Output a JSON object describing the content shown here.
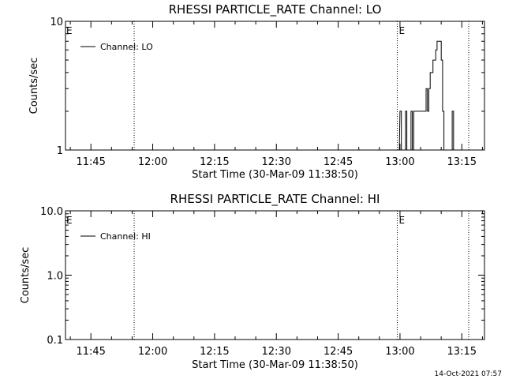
{
  "footer": {
    "timestamp": "14-Oct-2021 07:57"
  },
  "chart_data": [
    {
      "type": "line",
      "title": "RHESSI PARTICLE_RATE Channel: LO",
      "xlabel": "Start Time (30-Mar-09 11:38:50)",
      "ylabel": "Counts/sec",
      "yscale": "log",
      "ylim": [
        1,
        10
      ],
      "ytick_labels": [
        "1",
        "10"
      ],
      "xlim": [
        "11:38:50",
        "13:20:30"
      ],
      "xtick_labels": [
        "11:45",
        "12:00",
        "12:15",
        "12:30",
        "12:45",
        "13:00",
        "13:15"
      ],
      "legend": {
        "position": "top-left",
        "labels": [
          "Channel: LO"
        ]
      },
      "event_markers": [
        {
          "time": "11:55:30",
          "label": ""
        },
        {
          "time": "12:59:20",
          "label": "E"
        },
        {
          "time": "13:16:40",
          "label": ""
        }
      ],
      "start_marker_label": "E",
      "grid": false,
      "series": [
        {
          "name": "Channel: LO",
          "points": [
            [
              "12:59:30",
              1
            ],
            [
              "13:00:00",
              2
            ],
            [
              "13:00:20",
              1
            ],
            [
              "13:01:00",
              1
            ],
            [
              "13:01:20",
              2
            ],
            [
              "13:01:40",
              1
            ],
            [
              "13:02:20",
              1
            ],
            [
              "13:02:40",
              2
            ],
            [
              "13:03:00",
              1
            ],
            [
              "13:03:20",
              2
            ],
            [
              "13:06:00",
              2
            ],
            [
              "13:06:20",
              3
            ],
            [
              "13:06:40",
              2
            ],
            [
              "13:07:00",
              3
            ],
            [
              "13:07:20",
              4
            ],
            [
              "13:07:40",
              4
            ],
            [
              "13:08:00",
              5
            ],
            [
              "13:08:20",
              5
            ],
            [
              "13:08:40",
              6
            ],
            [
              "13:09:00",
              7
            ],
            [
              "13:09:20",
              7
            ],
            [
              "13:09:40",
              7
            ],
            [
              "13:10:00",
              5
            ],
            [
              "13:10:20",
              2
            ],
            [
              "13:10:40",
              1
            ],
            [
              "13:12:20",
              1
            ],
            [
              "13:12:40",
              2
            ],
            [
              "13:13:00",
              1
            ],
            [
              "13:13:20",
              1
            ]
          ]
        }
      ]
    },
    {
      "type": "line",
      "title": "RHESSI PARTICLE_RATE Channel: HI",
      "xlabel": "Start Time (30-Mar-09 11:38:50)",
      "ylabel": "Counts/sec",
      "yscale": "log",
      "ylim": [
        0.1,
        10
      ],
      "ytick_labels": [
        "0.1",
        "1.0",
        "10.0"
      ],
      "xlim": [
        "11:38:50",
        "13:20:30"
      ],
      "xtick_labels": [
        "11:45",
        "12:00",
        "12:15",
        "12:30",
        "12:45",
        "13:00",
        "13:15"
      ],
      "legend": {
        "position": "top-left",
        "labels": [
          "Channel: HI"
        ]
      },
      "event_markers": [
        {
          "time": "11:55:30",
          "label": ""
        },
        {
          "time": "12:59:20",
          "label": "E"
        },
        {
          "time": "13:16:40",
          "label": ""
        }
      ],
      "start_marker_label": "E",
      "grid": false,
      "series": [
        {
          "name": "Channel: HI",
          "points": []
        }
      ]
    }
  ]
}
